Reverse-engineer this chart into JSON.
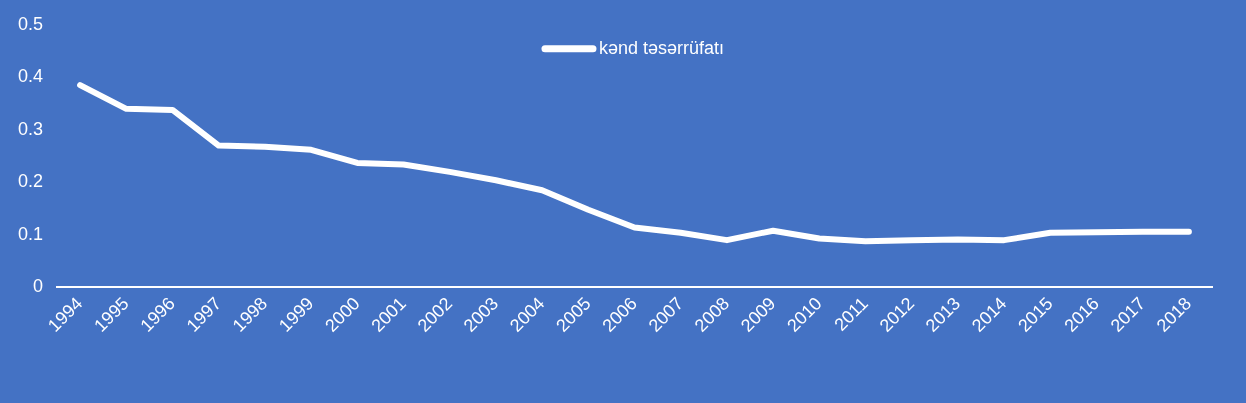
{
  "chart_data": {
    "type": "line",
    "categories": [
      "1994",
      "1995",
      "1996",
      "1997",
      "1998",
      "1999",
      "2000",
      "2001",
      "2002",
      "2003",
      "2004",
      "2005",
      "2006",
      "2007",
      "2008",
      "2009",
      "2010",
      "2011",
      "2012",
      "2013",
      "2014",
      "2015",
      "2016",
      "2017",
      "2018"
    ],
    "series": [
      {
        "name": "kənd təsərrüfatı",
        "color": "#ffffff",
        "values": [
          0.385,
          0.34,
          0.338,
          0.27,
          0.268,
          0.262,
          0.237,
          0.234,
          0.22,
          0.204,
          0.185,
          0.148,
          0.114,
          0.104,
          0.09,
          0.108,
          0.093,
          0.088,
          0.09,
          0.091,
          0.09,
          0.104,
          0.105,
          0.106,
          0.106
        ]
      }
    ],
    "ylim": [
      0,
      0.5
    ],
    "yticks": [
      0,
      0.1,
      0.2,
      0.3,
      0.4,
      0.5
    ],
    "grid": false,
    "legend": "top",
    "marker": "none",
    "line_style": "solid"
  }
}
